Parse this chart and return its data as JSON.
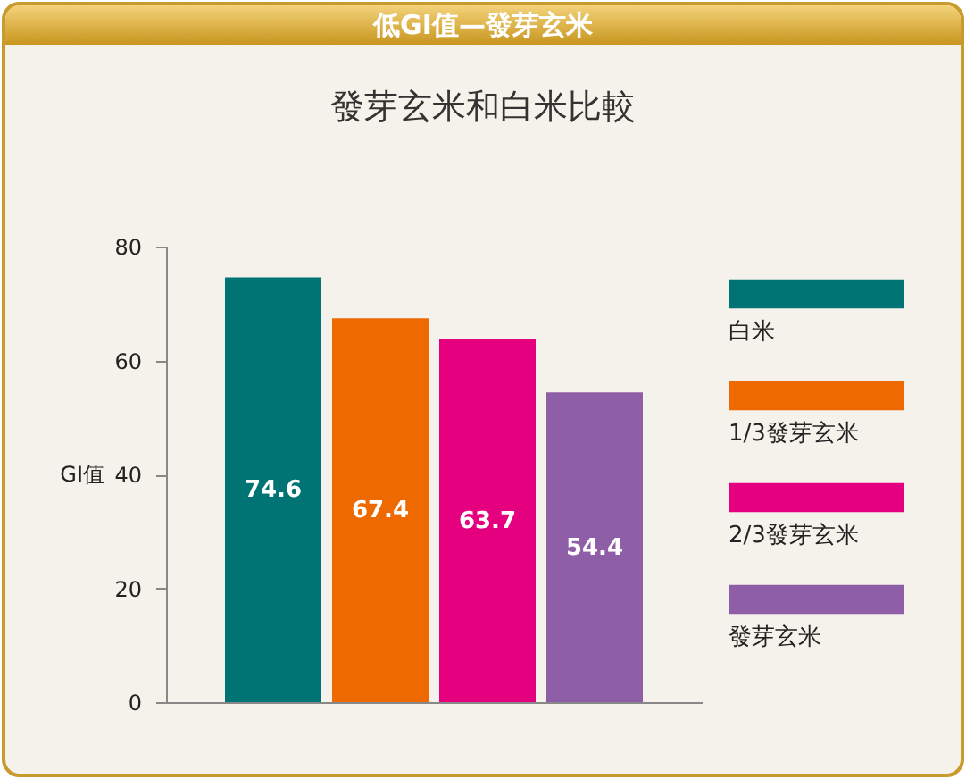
{
  "chart_data": {
    "type": "bar",
    "title": "低GI值—發芽玄米",
    "subtitle": "發芽玄米和白米比較",
    "ylabel": "GI值",
    "categories": [
      null,
      null,
      null,
      null
    ],
    "series": [
      {
        "name": "白米",
        "color": "#007474",
        "values": [
          74.6,
          null,
          null,
          null
        ]
      },
      {
        "name": "1/3發芽玄米",
        "color": "#ee6a00",
        "values": [
          null,
          67.4,
          null,
          null
        ]
      },
      {
        "name": "2/3發芽玄米",
        "color": "#e4007e",
        "values": [
          null,
          null,
          63.7,
          null
        ]
      },
      {
        "name": "發芽玄米",
        "color": "#8e5ea7",
        "values": [
          null,
          null,
          null,
          54.4
        ]
      }
    ],
    "ylim": [
      0,
      80
    ],
    "yticks": [
      0,
      20,
      40,
      60,
      80
    ],
    "grid": false,
    "legend": "right",
    "data_labels": true,
    "tick_labels": "y"
  }
}
